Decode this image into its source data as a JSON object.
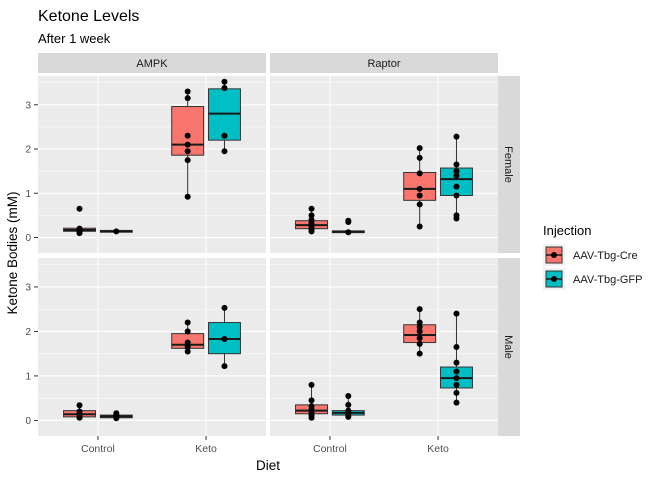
{
  "chart_data": {
    "type": "boxplot",
    "title": "Ketone Levels",
    "subtitle": "After 1 week",
    "xlabel": "Diet",
    "ylabel": "Ketone Bodies (mM)",
    "categories": [
      "Control",
      "Keto"
    ],
    "ylim": [
      -0.35,
      3.65
    ],
    "yticks": [
      0,
      1,
      2,
      3
    ],
    "grid": true,
    "legend": {
      "title": "Injection",
      "position": "right",
      "entries": [
        {
          "name": "AAV-Tbg-Cre",
          "color": "#F8766D"
        },
        {
          "name": "AAV-Tbg-GFP",
          "color": "#00BFC4"
        }
      ]
    },
    "facet_cols": [
      "AMPK",
      "Raptor"
    ],
    "facet_rows": [
      "Female",
      "Male"
    ],
    "panels": [
      {
        "col": "AMPK",
        "row": "Female",
        "groups": [
          {
            "diet": "Control",
            "injection": "AAV-Tbg-Cre",
            "q1": 0.14,
            "median": 0.17,
            "q3": 0.21,
            "wlo": 0.1,
            "whi": 0.22,
            "points": [
              0.1,
              0.13,
              0.16,
              0.18,
              0.2,
              0.65
            ]
          },
          {
            "diet": "Control",
            "injection": "AAV-Tbg-GFP",
            "q1": 0.12,
            "median": 0.14,
            "q3": 0.16,
            "wlo": 0.12,
            "whi": 0.16,
            "points": [
              0.14
            ]
          },
          {
            "diet": "Keto",
            "injection": "AAV-Tbg-Cre",
            "q1": 1.86,
            "median": 2.1,
            "q3": 2.96,
            "wlo": 0.92,
            "whi": 3.3,
            "points": [
              0.92,
              1.75,
              1.95,
              2.1,
              2.3,
              3.15,
              3.3
            ]
          },
          {
            "diet": "Keto",
            "injection": "AAV-Tbg-GFP",
            "q1": 2.2,
            "median": 2.8,
            "q3": 3.36,
            "wlo": 1.95,
            "whi": 3.52,
            "points": [
              1.95,
              2.3,
              3.38,
              3.52
            ]
          }
        ]
      },
      {
        "col": "Raptor",
        "row": "Female",
        "groups": [
          {
            "diet": "Control",
            "injection": "AAV-Tbg-Cre",
            "q1": 0.2,
            "median": 0.28,
            "q3": 0.38,
            "wlo": 0.14,
            "whi": 0.65,
            "points": [
              0.14,
              0.18,
              0.22,
              0.28,
              0.33,
              0.4,
              0.5,
              0.65
            ]
          },
          {
            "diet": "Control",
            "injection": "AAV-Tbg-GFP",
            "q1": 0.11,
            "median": 0.13,
            "q3": 0.15,
            "wlo": 0.1,
            "whi": 0.15,
            "points": [
              0.12,
              0.35,
              0.38
            ]
          },
          {
            "diet": "Keto",
            "injection": "AAV-Tbg-Cre",
            "q1": 0.84,
            "median": 1.1,
            "q3": 1.47,
            "wlo": 0.25,
            "whi": 2.02,
            "points": [
              0.25,
              0.75,
              0.95,
              1.1,
              1.45,
              1.8,
              2.02
            ]
          },
          {
            "diet": "Keto",
            "injection": "AAV-Tbg-GFP",
            "q1": 0.95,
            "median": 1.32,
            "q3": 1.57,
            "wlo": 0.43,
            "whi": 2.28,
            "points": [
              0.43,
              0.5,
              0.95,
              1.15,
              1.4,
              1.5,
              1.65,
              2.28
            ]
          }
        ]
      },
      {
        "col": "AMPK",
        "row": "Male",
        "groups": [
          {
            "diet": "Control",
            "injection": "AAV-Tbg-Cre",
            "q1": 0.08,
            "median": 0.14,
            "q3": 0.22,
            "wlo": 0.06,
            "whi": 0.34,
            "points": [
              0.06,
              0.1,
              0.15,
              0.2,
              0.34
            ]
          },
          {
            "diet": "Control",
            "injection": "AAV-Tbg-GFP",
            "q1": 0.06,
            "median": 0.09,
            "q3": 0.12,
            "wlo": 0.04,
            "whi": 0.16,
            "points": [
              0.05,
              0.09,
              0.12,
              0.16
            ]
          },
          {
            "diet": "Keto",
            "injection": "AAV-Tbg-Cre",
            "q1": 1.62,
            "median": 1.7,
            "q3": 1.95,
            "wlo": 1.55,
            "whi": 2.2,
            "points": [
              1.55,
              1.65,
              1.75,
              2.0,
              2.2
            ]
          },
          {
            "diet": "Keto",
            "injection": "AAV-Tbg-GFP",
            "q1": 1.5,
            "median": 1.83,
            "q3": 2.2,
            "wlo": 1.22,
            "whi": 2.53,
            "points": [
              1.22,
              1.83,
              2.53
            ]
          }
        ]
      },
      {
        "col": "Raptor",
        "row": "Male",
        "groups": [
          {
            "diet": "Control",
            "injection": "AAV-Tbg-Cre",
            "q1": 0.15,
            "median": 0.22,
            "q3": 0.35,
            "wlo": 0.06,
            "whi": 0.8,
            "points": [
              0.06,
              0.12,
              0.18,
              0.25,
              0.32,
              0.45,
              0.8
            ]
          },
          {
            "diet": "Control",
            "injection": "AAV-Tbg-GFP",
            "q1": 0.12,
            "median": 0.17,
            "q3": 0.22,
            "wlo": 0.08,
            "whi": 0.55,
            "points": [
              0.08,
              0.13,
              0.18,
              0.22,
              0.35,
              0.55
            ]
          },
          {
            "diet": "Keto",
            "injection": "AAV-Tbg-Cre",
            "q1": 1.75,
            "median": 1.92,
            "q3": 2.15,
            "wlo": 1.5,
            "whi": 2.5,
            "points": [
              1.5,
              1.72,
              1.85,
              2.0,
              2.1,
              2.2,
              2.5
            ]
          },
          {
            "diet": "Keto",
            "injection": "AAV-Tbg-GFP",
            "q1": 0.73,
            "median": 0.95,
            "q3": 1.2,
            "wlo": 0.4,
            "whi": 2.4,
            "points": [
              0.4,
              0.62,
              0.8,
              0.95,
              1.1,
              1.3,
              1.65,
              2.4
            ]
          }
        ]
      }
    ]
  }
}
